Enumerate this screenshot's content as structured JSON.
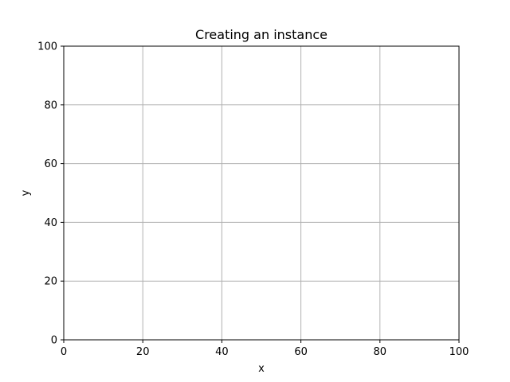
{
  "chart_data": {
    "type": "scatter",
    "title": "Creating an instance",
    "xlabel": "x",
    "ylabel": "y",
    "xlim": [
      0,
      100
    ],
    "ylim": [
      0,
      100
    ],
    "x_ticks": [
      0,
      20,
      40,
      60,
      80,
      100
    ],
    "y_ticks": [
      0,
      20,
      40,
      60,
      80,
      100
    ],
    "grid": true,
    "series": []
  },
  "colors": {
    "background": "#ffffff",
    "axes": "#000000",
    "grid": "#b0b0b0"
  }
}
